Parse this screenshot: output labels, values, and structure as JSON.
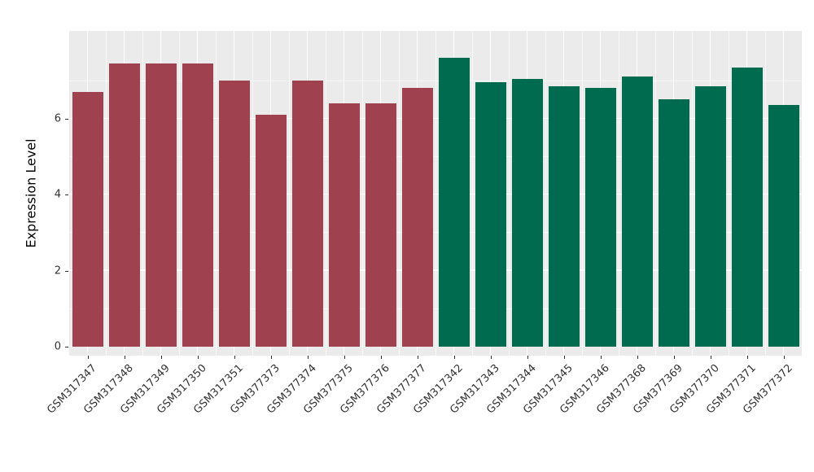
{
  "chart_data": {
    "type": "bar",
    "title": "",
    "xlabel": "",
    "ylabel": "Expression Level",
    "ylim": [
      0,
      8.3
    ],
    "yticks": [
      0,
      2,
      4,
      6
    ],
    "yticks_minor": [
      1,
      3,
      5,
      7
    ],
    "legend": "none",
    "grid": "on",
    "categories": [
      "GSM317347",
      "GSM317348",
      "GSM317349",
      "GSM317350",
      "GSM317351",
      "GSM377373",
      "GSM377374",
      "GSM377375",
      "GSM377376",
      "GSM377377",
      "GSM317342",
      "GSM317343",
      "GSM317344",
      "GSM317345",
      "GSM317346",
      "GSM377368",
      "GSM377369",
      "GSM377370",
      "GSM377371",
      "GSM377372"
    ],
    "values": [
      6.7,
      7.45,
      7.45,
      7.45,
      7.0,
      6.1,
      7.0,
      6.4,
      6.4,
      6.8,
      7.6,
      6.95,
      7.05,
      6.85,
      6.8,
      7.1,
      6.5,
      6.85,
      7.35,
      6.35
    ],
    "colors": [
      "#A0414F",
      "#A0414F",
      "#A0414F",
      "#A0414F",
      "#A0414F",
      "#A0414F",
      "#A0414F",
      "#A0414F",
      "#A0414F",
      "#A0414F",
      "#006B4E",
      "#006B4E",
      "#006B4E",
      "#006B4E",
      "#006B4E",
      "#006B4E",
      "#006B4E",
      "#006B4E",
      "#006B4E",
      "#006B4E"
    ],
    "group_colors": {
      "group1": "#A0414F",
      "group2": "#006B4E"
    }
  },
  "style": {
    "panel_bg": "#EBEBEB",
    "grid_color": "#FFFFFF",
    "tick_label_color": "#333333",
    "background": "#FFFFFF"
  }
}
